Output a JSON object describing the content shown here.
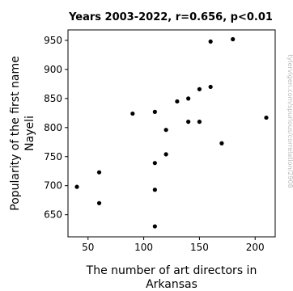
{
  "chart_data": {
    "type": "scatter",
    "title": "Years 2003-2022, r=0.656, p<0.01",
    "xlabel_lines": [
      "The number of art directors in",
      "Arkansas"
    ],
    "ylabel_lines": [
      "Popularity of the first name",
      "Nayeli"
    ],
    "xlim": [
      32,
      218
    ],
    "ylim": [
      612,
      968
    ],
    "xticks": [
      50,
      100,
      150,
      200
    ],
    "yticks": [
      650,
      700,
      750,
      800,
      850,
      900,
      950
    ],
    "grid": false,
    "legend": "none",
    "points": [
      {
        "x": 40,
        "y": 698
      },
      {
        "x": 60,
        "y": 723
      },
      {
        "x": 60,
        "y": 670
      },
      {
        "x": 90,
        "y": 824
      },
      {
        "x": 110,
        "y": 827
      },
      {
        "x": 110,
        "y": 739
      },
      {
        "x": 110,
        "y": 693
      },
      {
        "x": 110,
        "y": 630
      },
      {
        "x": 120,
        "y": 796
      },
      {
        "x": 120,
        "y": 754
      },
      {
        "x": 130,
        "y": 845
      },
      {
        "x": 140,
        "y": 850
      },
      {
        "x": 140,
        "y": 810
      },
      {
        "x": 150,
        "y": 866
      },
      {
        "x": 150,
        "y": 810
      },
      {
        "x": 160,
        "y": 870
      },
      {
        "x": 160,
        "y": 948
      },
      {
        "x": 170,
        "y": 773
      },
      {
        "x": 180,
        "y": 952
      },
      {
        "x": 210,
        "y": 817
      }
    ],
    "marker_color": "#000000",
    "watermark": "tylervigen.com/spurious/correlation/2908"
  }
}
